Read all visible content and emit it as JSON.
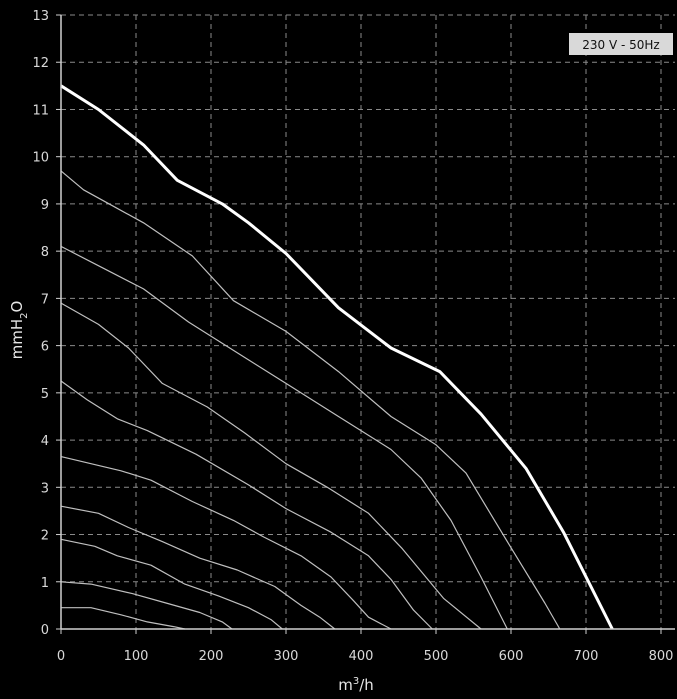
{
  "chart_data": {
    "type": "line",
    "xlabel": "m³/h",
    "ylabel": "mmH₂O",
    "badge": "230 V - 50Hz",
    "xlim": [
      0,
      800
    ],
    "ylim": [
      0,
      13
    ],
    "x_ticks": [
      "0",
      "100",
      "200",
      "300",
      "400",
      "500",
      "600",
      "700",
      "800"
    ],
    "y_ticks": [
      "0",
      "1",
      "2",
      "3",
      "4",
      "5",
      "6",
      "7",
      "8",
      "9",
      "10",
      "11",
      "12",
      "13"
    ],
    "grid": true,
    "colors": {
      "background": "#000000",
      "curve": "#ffffff",
      "thin_curve": "#bfbfbf",
      "grid": "#8a8a8a",
      "badge": "#d9d9d9"
    },
    "series": [
      {
        "emphasis": true,
        "points": [
          [
            0,
            11.5
          ],
          [
            50,
            11.0
          ],
          [
            110,
            10.25
          ],
          [
            155,
            9.5
          ],
          [
            215,
            9.0
          ],
          [
            250,
            8.6
          ],
          [
            300,
            7.95
          ],
          [
            370,
            6.8
          ],
          [
            440,
            5.95
          ],
          [
            505,
            5.45
          ],
          [
            560,
            4.55
          ],
          [
            620,
            3.4
          ],
          [
            670,
            2.05
          ],
          [
            735,
            0
          ]
        ]
      },
      {
        "emphasis": false,
        "points": [
          [
            0,
            9.7
          ],
          [
            30,
            9.3
          ],
          [
            70,
            8.95
          ],
          [
            110,
            8.6
          ],
          [
            175,
            7.9
          ],
          [
            230,
            6.95
          ],
          [
            300,
            6.3
          ],
          [
            370,
            5.45
          ],
          [
            440,
            4.5
          ],
          [
            500,
            3.9
          ],
          [
            540,
            3.3
          ],
          [
            595,
            1.85
          ],
          [
            645,
            0.55
          ],
          [
            665,
            0
          ]
        ]
      },
      {
        "emphasis": false,
        "points": [
          [
            0,
            8.1
          ],
          [
            55,
            7.65
          ],
          [
            110,
            7.2
          ],
          [
            170,
            6.5
          ],
          [
            240,
            5.8
          ],
          [
            300,
            5.2
          ],
          [
            370,
            4.5
          ],
          [
            440,
            3.8
          ],
          [
            480,
            3.2
          ],
          [
            520,
            2.3
          ],
          [
            560,
            1.1
          ],
          [
            595,
            0
          ]
        ]
      },
      {
        "emphasis": false,
        "points": [
          [
            0,
            6.9
          ],
          [
            50,
            6.45
          ],
          [
            90,
            5.95
          ],
          [
            135,
            5.2
          ],
          [
            195,
            4.7
          ],
          [
            245,
            4.15
          ],
          [
            300,
            3.5
          ],
          [
            355,
            3.0
          ],
          [
            410,
            2.45
          ],
          [
            455,
            1.7
          ],
          [
            510,
            0.65
          ],
          [
            560,
            0
          ]
        ]
      },
      {
        "emphasis": false,
        "points": [
          [
            0,
            5.25
          ],
          [
            35,
            4.85
          ],
          [
            75,
            4.45
          ],
          [
            115,
            4.2
          ],
          [
            180,
            3.7
          ],
          [
            250,
            3.05
          ],
          [
            300,
            2.55
          ],
          [
            360,
            2.05
          ],
          [
            410,
            1.55
          ],
          [
            440,
            1.05
          ],
          [
            470,
            0.4
          ],
          [
            495,
            0
          ]
        ]
      },
      {
        "emphasis": false,
        "points": [
          [
            0,
            3.65
          ],
          [
            40,
            3.5
          ],
          [
            80,
            3.35
          ],
          [
            120,
            3.15
          ],
          [
            175,
            2.7
          ],
          [
            230,
            2.3
          ],
          [
            270,
            1.95
          ],
          [
            320,
            1.55
          ],
          [
            360,
            1.1
          ],
          [
            390,
            0.6
          ],
          [
            410,
            0.25
          ],
          [
            440,
            0
          ]
        ]
      },
      {
        "emphasis": false,
        "points": [
          [
            0,
            2.6
          ],
          [
            50,
            2.45
          ],
          [
            90,
            2.15
          ],
          [
            135,
            1.85
          ],
          [
            185,
            1.5
          ],
          [
            235,
            1.25
          ],
          [
            285,
            0.9
          ],
          [
            320,
            0.5
          ],
          [
            345,
            0.25
          ],
          [
            365,
            0
          ]
        ]
      },
      {
        "emphasis": false,
        "points": [
          [
            0,
            1.9
          ],
          [
            45,
            1.75
          ],
          [
            75,
            1.55
          ],
          [
            120,
            1.35
          ],
          [
            165,
            0.95
          ],
          [
            210,
            0.7
          ],
          [
            250,
            0.45
          ],
          [
            280,
            0.2
          ],
          [
            295,
            0
          ]
        ]
      },
      {
        "emphasis": false,
        "points": [
          [
            0,
            1.0
          ],
          [
            40,
            0.95
          ],
          [
            95,
            0.75
          ],
          [
            140,
            0.55
          ],
          [
            185,
            0.35
          ],
          [
            215,
            0.15
          ],
          [
            228,
            0
          ]
        ]
      },
      {
        "emphasis": false,
        "points": [
          [
            0,
            0.45
          ],
          [
            40,
            0.45
          ],
          [
            80,
            0.3
          ],
          [
            115,
            0.15
          ],
          [
            150,
            0.05
          ],
          [
            165,
            0
          ]
        ]
      }
    ]
  }
}
